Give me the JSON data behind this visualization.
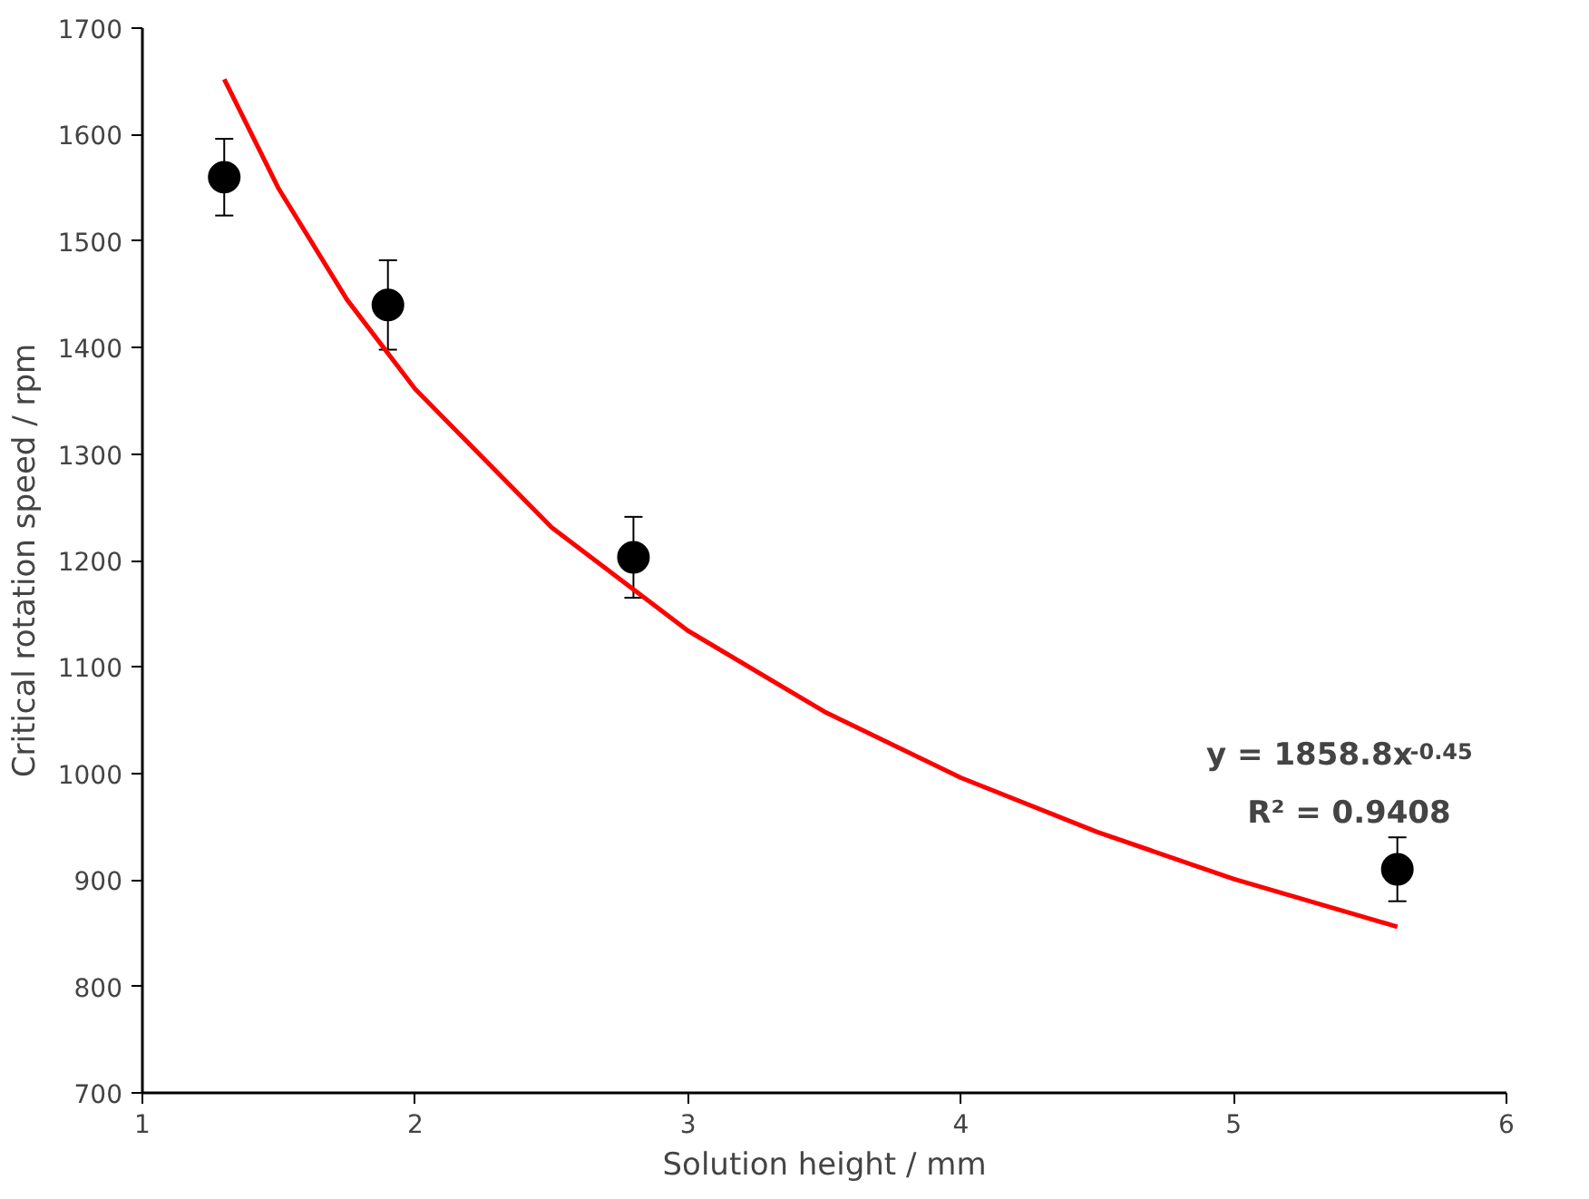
{
  "chart_data": {
    "type": "scatter",
    "xlabel": "Solution height / mm",
    "ylabel": "Critical rotation speed / rpm",
    "xlim": [
      1,
      6
    ],
    "xticks": [
      1,
      2,
      3,
      4,
      5,
      6
    ],
    "ylim": [
      700,
      1700
    ],
    "yticks": [
      700,
      800,
      900,
      1000,
      1100,
      1200,
      1300,
      1400,
      1500,
      1600,
      1700
    ],
    "grid": false,
    "marker": "circle",
    "series": [
      {
        "type": "scatter",
        "color": "#000000",
        "x": [
          1.3,
          1.9,
          2.8,
          5.6
        ],
        "values": [
          1560,
          1440,
          1203,
          910
        ],
        "errors": [
          36,
          42,
          38,
          30
        ]
      },
      {
        "type": "line",
        "marker": "none",
        "color": "#ff0000",
        "line_style": "solid",
        "x": [
          1.3,
          1.5,
          1.75,
          2,
          2.5,
          3,
          3.5,
          4,
          4.5,
          5,
          5.6
        ],
        "values": [
          1652,
          1549,
          1445,
          1361,
          1231,
          1134,
          1058,
          996,
          945,
          901,
          856
        ]
      }
    ],
    "annotations": [
      "y = 1858.8x$^{-0.45}$",
      "R² = 0.9408"
    ]
  }
}
